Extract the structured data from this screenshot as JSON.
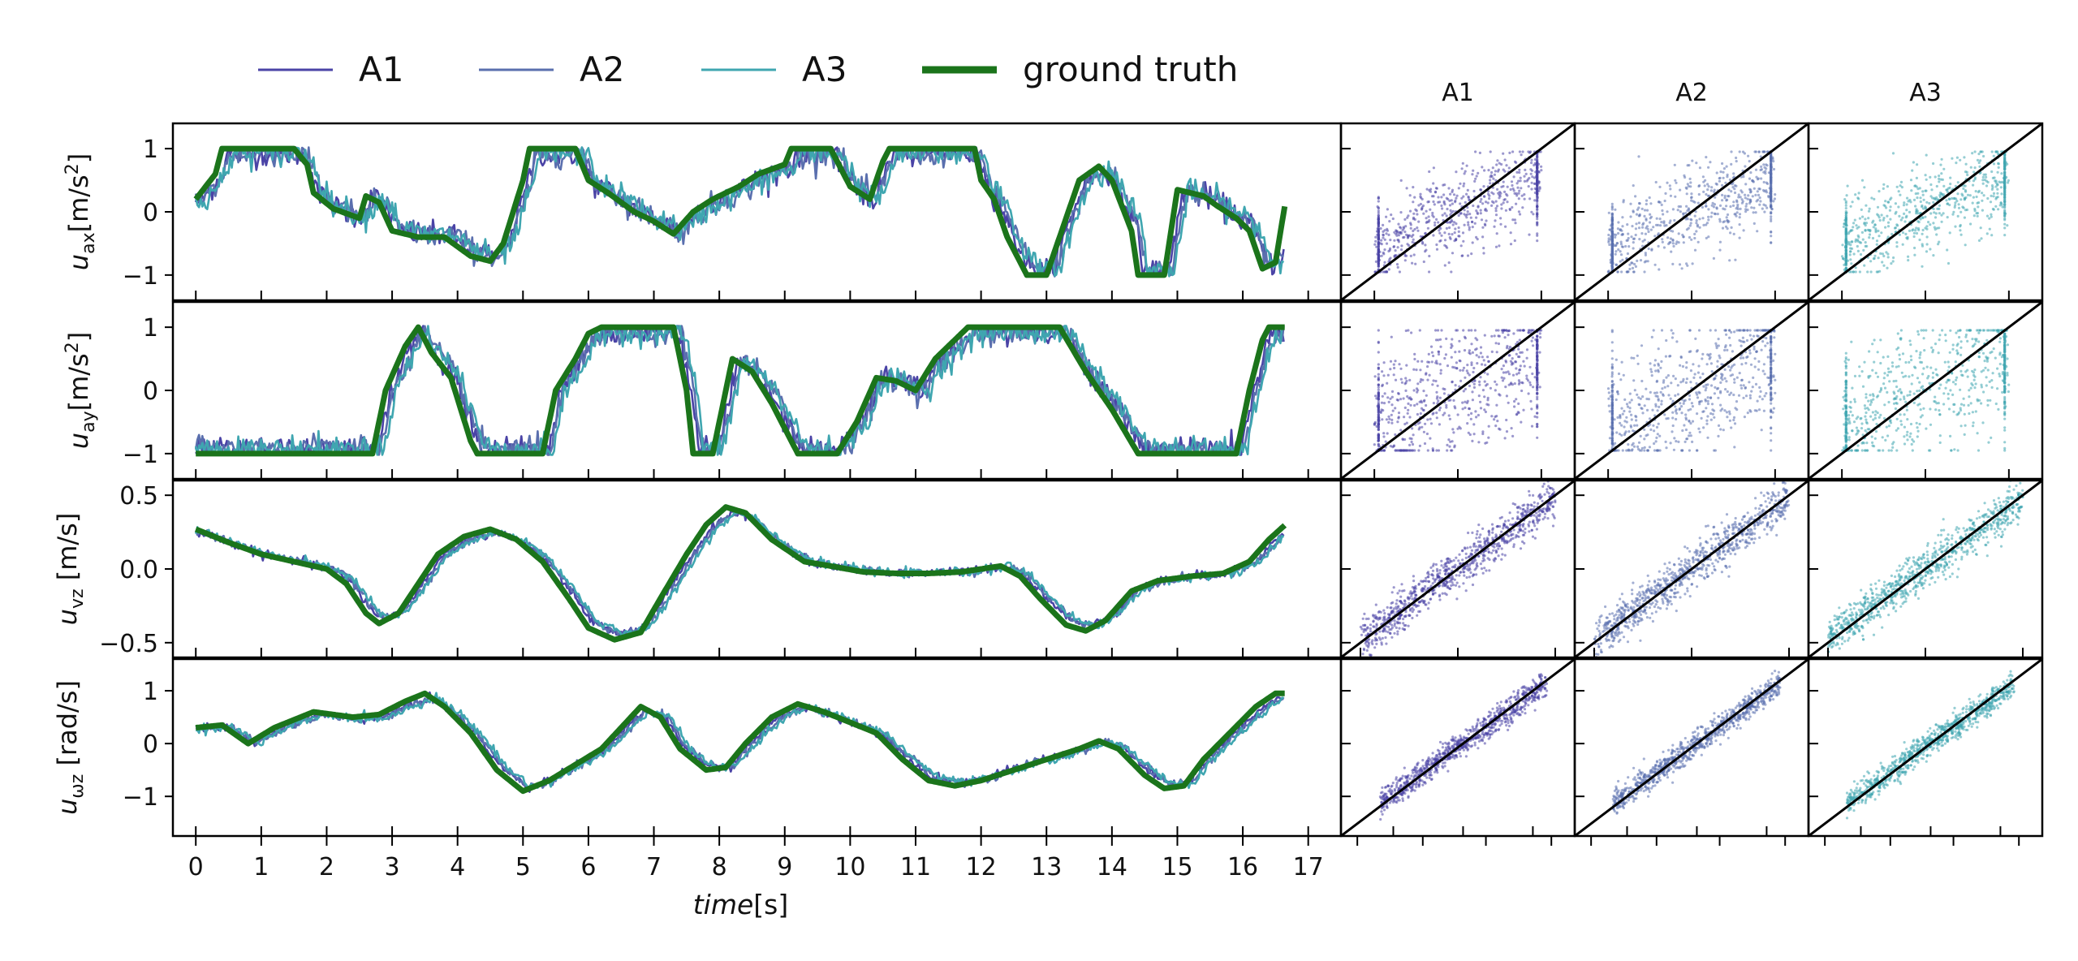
{
  "legend": [
    {
      "label": "A1",
      "color": "#4a43a6",
      "width": 3
    },
    {
      "label": "A2",
      "color": "#5a6fae",
      "width": 3
    },
    {
      "label": "A3",
      "color": "#3fa6b0",
      "width": 3
    },
    {
      "label": "ground truth",
      "color": "#1b741b",
      "width": 9
    }
  ],
  "colors": {
    "A1": "#4a43a6",
    "A2": "#5a6fae",
    "A3": "#3fa6b0",
    "truth": "#1b741b",
    "diag": "#000000"
  },
  "x_ticks": [
    "0",
    "1",
    "2",
    "3",
    "4",
    "5",
    "6",
    "7",
    "8",
    "9",
    "10",
    "11",
    "12",
    "13",
    "14",
    "15",
    "16",
    "17"
  ],
  "x_label_italic": "time",
  "x_label_unit": "[s]",
  "scatter_titles": [
    "A1",
    "A2",
    "A3"
  ],
  "chart_data": [
    {
      "type": "line",
      "ylabel_main": "u",
      "ylabel_sub": "ax",
      "ylabel_unit": "[m/s",
      "ylabel_sup": "2",
      "ylabel_end": "]",
      "yticks": [
        {
          "v": 1,
          "label": "1"
        },
        {
          "v": 0,
          "label": "0"
        },
        {
          "v": -1,
          "label": "−1"
        }
      ],
      "ylim": [
        -1.4,
        1.4
      ],
      "xlim": [
        -0.35,
        17.5
      ],
      "truth": [
        [
          0,
          0.2
        ],
        [
          0.3,
          0.6
        ],
        [
          0.4,
          1
        ],
        [
          1.5,
          1
        ],
        [
          1.7,
          0.75
        ],
        [
          1.8,
          0.3
        ],
        [
          2.1,
          0.05
        ],
        [
          2.5,
          -0.1
        ],
        [
          2.6,
          0.25
        ],
        [
          2.8,
          0.15
        ],
        [
          3.0,
          -0.3
        ],
        [
          3.4,
          -0.4
        ],
        [
          3.8,
          -0.4
        ],
        [
          4.2,
          -0.7
        ],
        [
          4.5,
          -0.78
        ],
        [
          4.7,
          -0.5
        ],
        [
          5.0,
          0.5
        ],
        [
          5.1,
          1
        ],
        [
          5.8,
          1
        ],
        [
          6.0,
          0.5
        ],
        [
          6.3,
          0.3
        ],
        [
          6.7,
          0.0
        ],
        [
          7.0,
          -0.15
        ],
        [
          7.3,
          -0.35
        ],
        [
          7.6,
          0.0
        ],
        [
          7.9,
          0.2
        ],
        [
          8.3,
          0.4
        ],
        [
          8.6,
          0.6
        ],
        [
          9.0,
          0.75
        ],
        [
          9.1,
          1
        ],
        [
          9.7,
          1
        ],
        [
          10.0,
          0.4
        ],
        [
          10.3,
          0.2
        ],
        [
          10.5,
          0.8
        ],
        [
          10.6,
          1
        ],
        [
          11.9,
          1
        ],
        [
          12.0,
          0.5
        ],
        [
          12.2,
          0.2
        ],
        [
          12.4,
          -0.4
        ],
        [
          12.7,
          -1
        ],
        [
          13.0,
          -1
        ],
        [
          13.2,
          -0.4
        ],
        [
          13.5,
          0.5
        ],
        [
          13.8,
          0.72
        ],
        [
          14.0,
          0.5
        ],
        [
          14.3,
          -0.3
        ],
        [
          14.4,
          -1
        ],
        [
          14.8,
          -1
        ],
        [
          15.0,
          0.35
        ],
        [
          15.4,
          0.25
        ],
        [
          15.6,
          0.1
        ],
        [
          15.9,
          -0.1
        ],
        [
          16.1,
          -0.3
        ],
        [
          16.3,
          -0.9
        ],
        [
          16.5,
          -0.8
        ],
        [
          16.65,
          0.15
        ]
      ],
      "scatter_spread": 0.35,
      "scatter_clip": 0.95
    },
    {
      "type": "line",
      "ylabel_main": "u",
      "ylabel_sub": "ay",
      "ylabel_unit": "[m/s",
      "ylabel_sup": "2",
      "ylabel_end": "]",
      "yticks": [
        {
          "v": 1,
          "label": "1"
        },
        {
          "v": 0,
          "label": "0"
        },
        {
          "v": -1,
          "label": "−1"
        }
      ],
      "ylim": [
        -1.4,
        1.4
      ],
      "xlim": [
        -0.35,
        17.5
      ],
      "truth": [
        [
          0,
          -1
        ],
        [
          2.7,
          -1
        ],
        [
          2.9,
          0.0
        ],
        [
          3.2,
          0.7
        ],
        [
          3.4,
          1
        ],
        [
          3.6,
          0.6
        ],
        [
          3.9,
          0.2
        ],
        [
          4.2,
          -0.8
        ],
        [
          4.3,
          -1
        ],
        [
          5.3,
          -1
        ],
        [
          5.5,
          0.0
        ],
        [
          5.8,
          0.5
        ],
        [
          6.0,
          0.9
        ],
        [
          6.2,
          1
        ],
        [
          7.3,
          1
        ],
        [
          7.5,
          0.0
        ],
        [
          7.6,
          -1
        ],
        [
          7.9,
          -1
        ],
        [
          8.2,
          0.5
        ],
        [
          8.5,
          0.3
        ],
        [
          8.8,
          -0.2
        ],
        [
          9.2,
          -1
        ],
        [
          9.8,
          -1
        ],
        [
          10.1,
          -0.5
        ],
        [
          10.4,
          0.2
        ],
        [
          10.7,
          0.15
        ],
        [
          11.0,
          0.0
        ],
        [
          11.3,
          0.5
        ],
        [
          11.6,
          0.8
        ],
        [
          11.8,
          1
        ],
        [
          13.2,
          1
        ],
        [
          13.6,
          0.3
        ],
        [
          14.0,
          -0.3
        ],
        [
          14.4,
          -1
        ],
        [
          15.9,
          -1
        ],
        [
          16.1,
          0.0
        ],
        [
          16.3,
          0.8
        ],
        [
          16.4,
          1
        ],
        [
          16.65,
          1
        ]
      ],
      "scatter_spread": 0.55,
      "scatter_clip": 0.95
    },
    {
      "type": "line",
      "ylabel_main": "u",
      "ylabel_sub": "vz",
      "ylabel_unit": " [m/s]",
      "ylabel_sup": "",
      "ylabel_end": "",
      "yticks": [
        {
          "v": 0.5,
          "label": "0.5"
        },
        {
          "v": 0.0,
          "label": "0.0"
        },
        {
          "v": -0.5,
          "label": "−0.5"
        }
      ],
      "ylim": [
        -0.6,
        0.6
      ],
      "xlim": [
        -0.35,
        17.5
      ],
      "truth": [
        [
          0,
          0.27
        ],
        [
          0.5,
          0.18
        ],
        [
          1.0,
          0.1
        ],
        [
          1.5,
          0.05
        ],
        [
          2.0,
          0.0
        ],
        [
          2.3,
          -0.1
        ],
        [
          2.6,
          -0.3
        ],
        [
          2.8,
          -0.37
        ],
        [
          3.1,
          -0.3
        ],
        [
          3.4,
          -0.1
        ],
        [
          3.7,
          0.1
        ],
        [
          4.1,
          0.22
        ],
        [
          4.5,
          0.27
        ],
        [
          4.9,
          0.2
        ],
        [
          5.3,
          0.05
        ],
        [
          5.7,
          -0.2
        ],
        [
          6.0,
          -0.4
        ],
        [
          6.4,
          -0.48
        ],
        [
          6.8,
          -0.43
        ],
        [
          7.1,
          -0.2
        ],
        [
          7.5,
          0.1
        ],
        [
          7.8,
          0.3
        ],
        [
          8.1,
          0.42
        ],
        [
          8.4,
          0.38
        ],
        [
          8.8,
          0.2
        ],
        [
          9.3,
          0.05
        ],
        [
          9.7,
          0.02
        ],
        [
          10.2,
          -0.02
        ],
        [
          10.7,
          -0.03
        ],
        [
          11.2,
          -0.03
        ],
        [
          11.7,
          -0.02
        ],
        [
          12.0,
          0.0
        ],
        [
          12.3,
          0.02
        ],
        [
          12.6,
          -0.05
        ],
        [
          12.9,
          -0.2
        ],
        [
          13.3,
          -0.38
        ],
        [
          13.6,
          -0.42
        ],
        [
          13.9,
          -0.35
        ],
        [
          14.3,
          -0.15
        ],
        [
          14.7,
          -0.08
        ],
        [
          15.2,
          -0.05
        ],
        [
          15.7,
          -0.03
        ],
        [
          16.1,
          0.05
        ],
        [
          16.4,
          0.2
        ],
        [
          16.65,
          0.3
        ]
      ],
      "scatter_spread": 0.07,
      "scatter_clip": 0
    },
    {
      "type": "line",
      "ylabel_main": "u",
      "ylabel_sub": "ωz",
      "ylabel_unit": " [rad/s]",
      "ylabel_sup": "",
      "ylabel_end": "",
      "yticks": [
        {
          "v": 1,
          "label": "1"
        },
        {
          "v": 0,
          "label": "0"
        },
        {
          "v": -1,
          "label": "−1"
        }
      ],
      "ylim": [
        -1.75,
        1.6
      ],
      "xlim": [
        -0.35,
        17.5
      ],
      "truth": [
        [
          0,
          0.3
        ],
        [
          0.4,
          0.35
        ],
        [
          0.8,
          0.0
        ],
        [
          1.2,
          0.3
        ],
        [
          1.8,
          0.6
        ],
        [
          2.4,
          0.5
        ],
        [
          2.8,
          0.55
        ],
        [
          3.2,
          0.8
        ],
        [
          3.5,
          0.95
        ],
        [
          3.8,
          0.7
        ],
        [
          4.2,
          0.2
        ],
        [
          4.6,
          -0.5
        ],
        [
          5.0,
          -0.9
        ],
        [
          5.4,
          -0.7
        ],
        [
          5.8,
          -0.4
        ],
        [
          6.2,
          -0.1
        ],
        [
          6.5,
          0.3
        ],
        [
          6.8,
          0.7
        ],
        [
          7.1,
          0.5
        ],
        [
          7.4,
          -0.1
        ],
        [
          7.8,
          -0.5
        ],
        [
          8.1,
          -0.45
        ],
        [
          8.4,
          0.0
        ],
        [
          8.8,
          0.5
        ],
        [
          9.2,
          0.75
        ],
        [
          9.6,
          0.6
        ],
        [
          10.0,
          0.4
        ],
        [
          10.4,
          0.2
        ],
        [
          10.8,
          -0.3
        ],
        [
          11.2,
          -0.7
        ],
        [
          11.6,
          -0.8
        ],
        [
          12.0,
          -0.7
        ],
        [
          12.5,
          -0.5
        ],
        [
          13.0,
          -0.3
        ],
        [
          13.5,
          -0.1
        ],
        [
          13.8,
          0.05
        ],
        [
          14.1,
          -0.1
        ],
        [
          14.5,
          -0.6
        ],
        [
          14.8,
          -0.85
        ],
        [
          15.1,
          -0.8
        ],
        [
          15.4,
          -0.3
        ],
        [
          15.8,
          0.2
        ],
        [
          16.2,
          0.7
        ],
        [
          16.5,
          0.95
        ],
        [
          16.65,
          0.95
        ]
      ],
      "scatter_spread": 0.12,
      "scatter_clip": 0
    }
  ]
}
